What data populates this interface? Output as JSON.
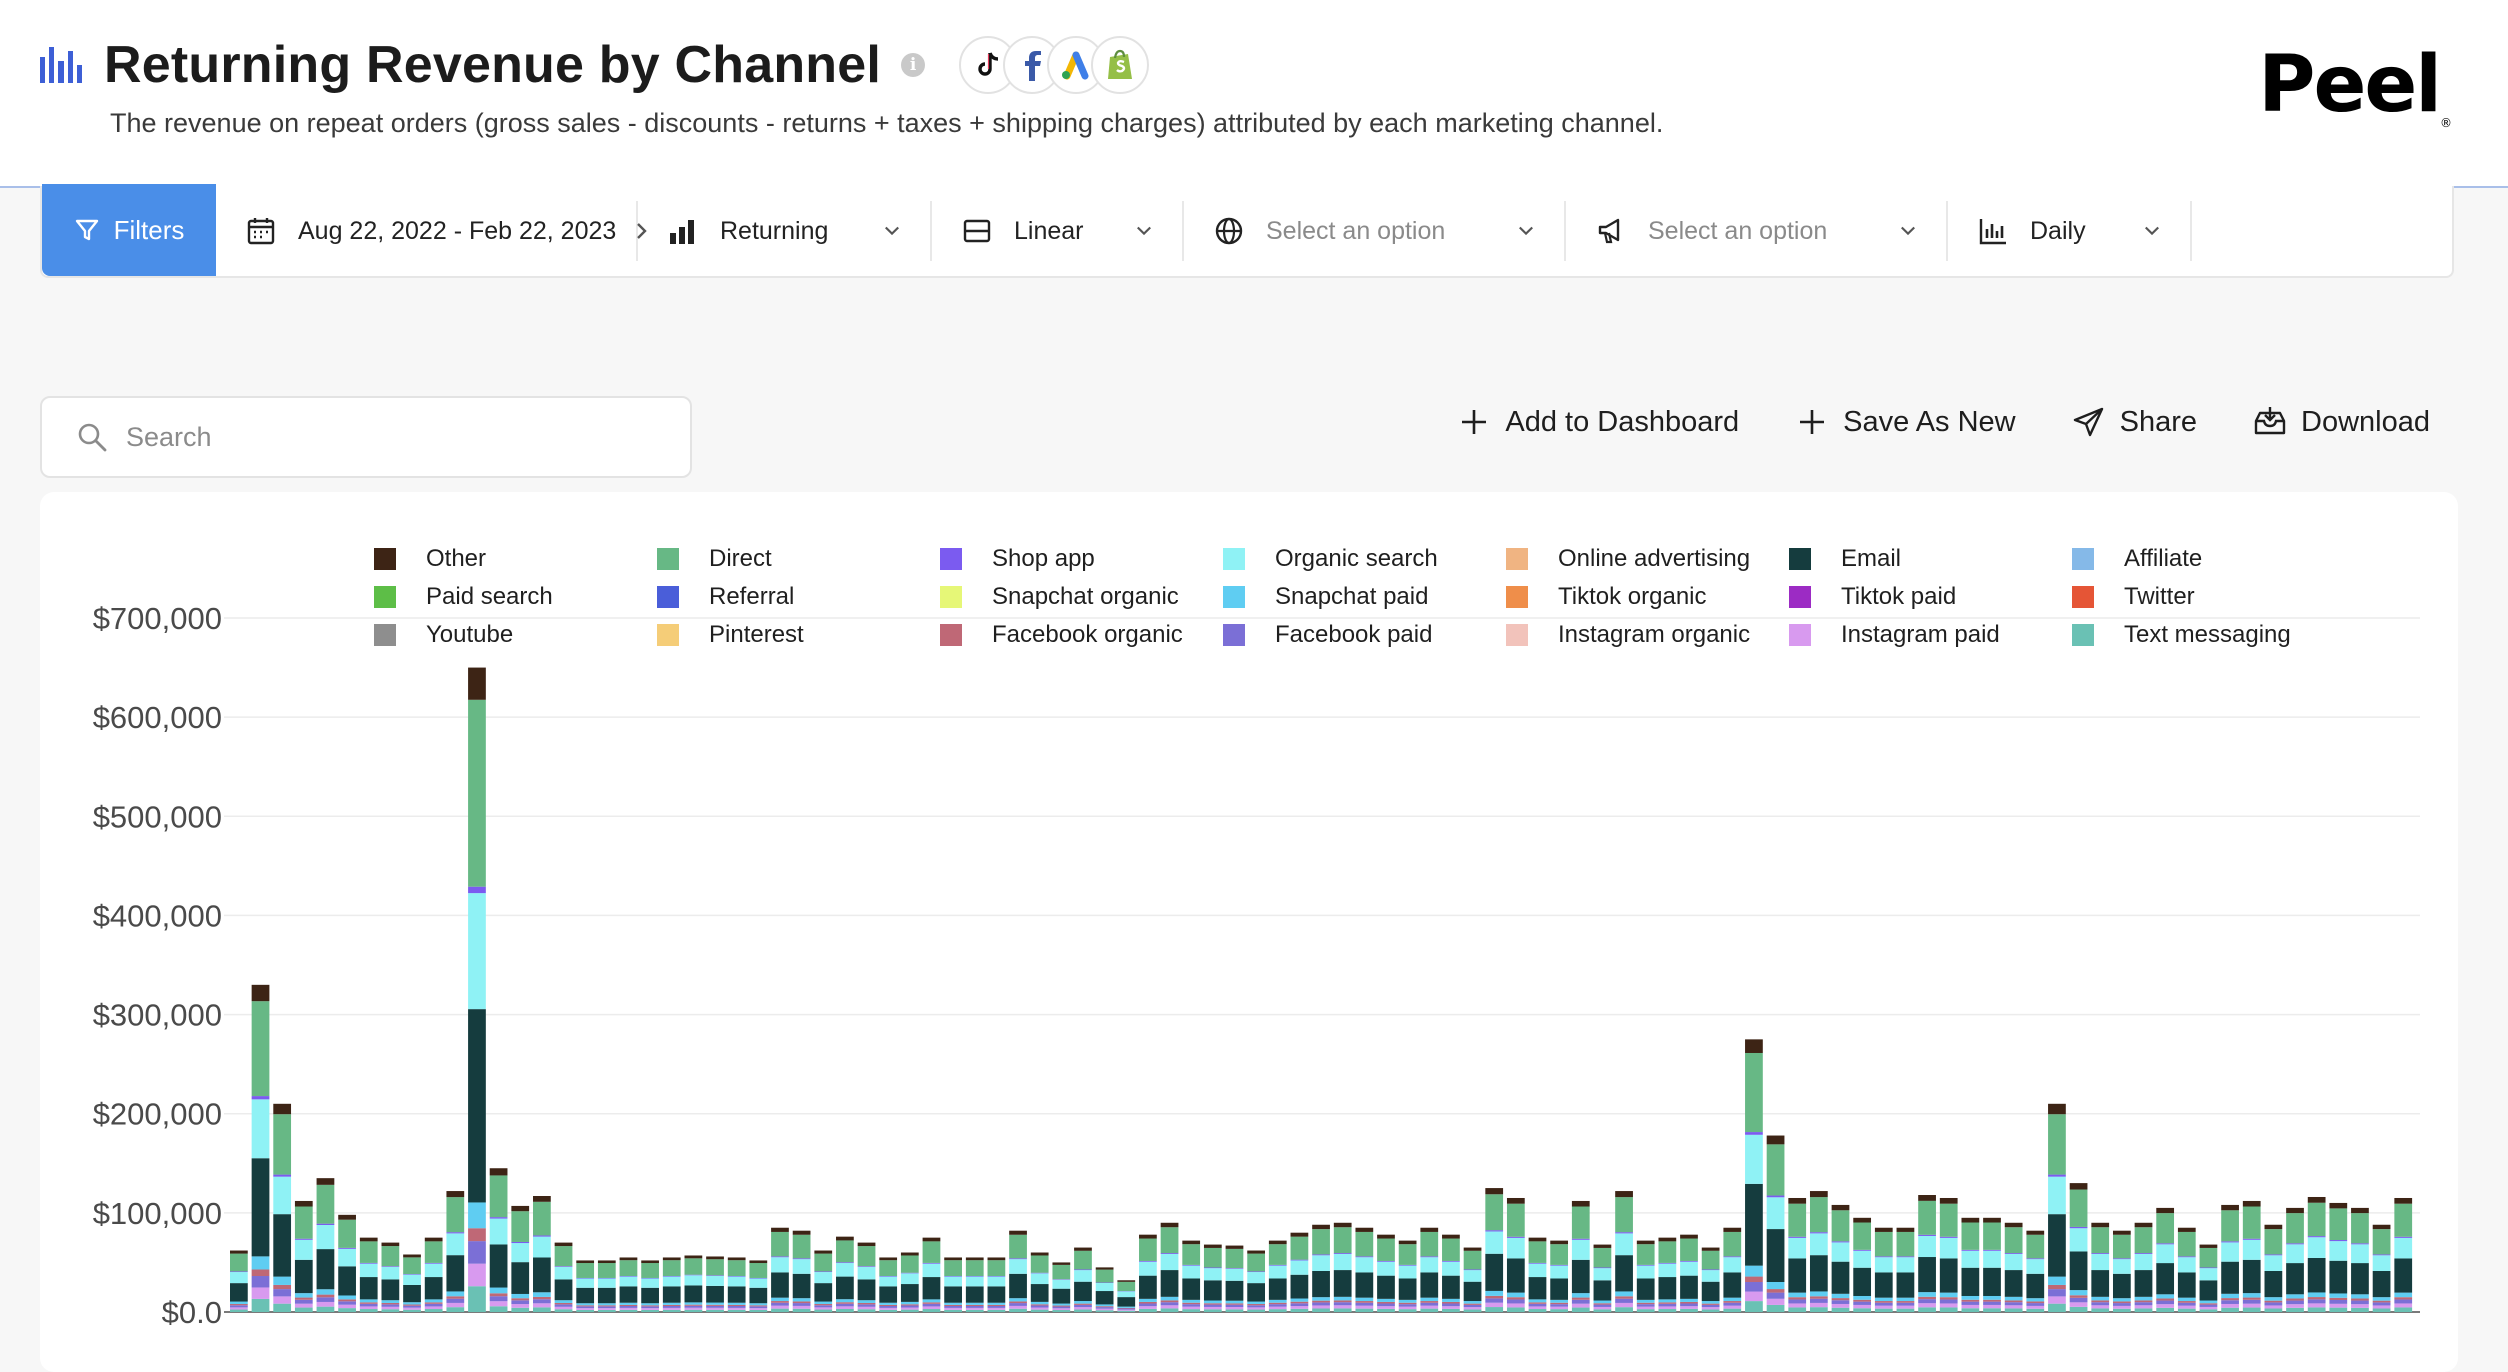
{
  "header": {
    "title": "Returning Revenue by Channel",
    "info_glyph": "i",
    "subtitle": "The revenue on repeat orders (gross sales - discounts - returns + taxes + shipping charges) attributed by each marketing channel.",
    "logo": "Peel",
    "logo_mark": "®",
    "source_icons": [
      "tiktok-icon",
      "facebook-icon",
      "google-ads-icon",
      "shopify-icon"
    ]
  },
  "filters": {
    "button_label": "Filters",
    "date_range": "Aug 22, 2022 - Feb 22, 2023",
    "customer_type": "Returning",
    "scale": "Linear",
    "select1_placeholder": "Select an option",
    "select2_placeholder": "Select an option",
    "granularity": "Daily"
  },
  "search": {
    "placeholder": "Search"
  },
  "actions": {
    "add_to_dashboard": "Add to Dashboard",
    "save_as_new": "Save As New",
    "share": "Share",
    "download": "Download"
  },
  "colors": {
    "accent": "#4a8ee8",
    "brand_icon": "#3d5fd6"
  },
  "chart_data": {
    "type": "bar",
    "stacked": true,
    "grid": true,
    "legend_position": "top",
    "yticks": [
      "$0.0",
      "$100,000",
      "$200,000",
      "$300,000",
      "$400,000",
      "$500,000",
      "$600,000",
      "$700,000"
    ],
    "ylim": [
      0,
      700000
    ],
    "legend": [
      {
        "name": "Other",
        "color": "#3d2415"
      },
      {
        "name": "Direct",
        "color": "#67b885"
      },
      {
        "name": "Shop app",
        "color": "#7b5bf0"
      },
      {
        "name": "Organic search",
        "color": "#8ff2f5"
      },
      {
        "name": "Online advertising",
        "color": "#f0b482"
      },
      {
        "name": "Email",
        "color": "#153c3e"
      },
      {
        "name": "Affiliate",
        "color": "#85b9e8"
      },
      {
        "name": "Paid search",
        "color": "#5dbe47"
      },
      {
        "name": "Referral",
        "color": "#4a5ed9"
      },
      {
        "name": "Snapchat organic",
        "color": "#e6f777"
      },
      {
        "name": "Snapchat paid",
        "color": "#5fcdf2"
      },
      {
        "name": "Tiktok organic",
        "color": "#ef8e4a"
      },
      {
        "name": "Tiktok paid",
        "color": "#9c2bc4"
      },
      {
        "name": "Twitter",
        "color": "#e55536"
      },
      {
        "name": "Youtube",
        "color": "#8e8e8e"
      },
      {
        "name": "Pinterest",
        "color": "#f5cd78"
      },
      {
        "name": "Facebook organic",
        "color": "#bf6876"
      },
      {
        "name": "Facebook paid",
        "color": "#7b6fd6"
      },
      {
        "name": "Instagram organic",
        "color": "#f2c3bb"
      },
      {
        "name": "Instagram paid",
        "color": "#d89aef"
      },
      {
        "name": "Text messaging",
        "color": "#6ac1b4"
      }
    ],
    "stack_order": [
      "Text messaging",
      "Instagram paid",
      "Facebook paid",
      "Facebook organic",
      "Snapchat paid",
      "Email",
      "Organic search",
      "Shop app",
      "Direct",
      "Other"
    ],
    "totals": [
      62000,
      330000,
      210000,
      112000,
      135000,
      98000,
      75000,
      70000,
      58000,
      75000,
      122000,
      650000,
      145000,
      107000,
      117000,
      70000,
      52000,
      52000,
      55000,
      52000,
      55000,
      57000,
      56000,
      55000,
      52000,
      85000,
      82000,
      62000,
      76000,
      70000,
      55000,
      60000,
      75000,
      55000,
      55000,
      55000,
      82000,
      60000,
      50000,
      65000,
      45000,
      32000,
      78000,
      90000,
      72000,
      68000,
      67000,
      62000,
      72000,
      80000,
      88000,
      90000,
      85000,
      78000,
      72000,
      85000,
      78000,
      65000,
      125000,
      115000,
      75000,
      72000,
      112000,
      68000,
      122000,
      72000,
      75000,
      78000,
      65000,
      85000,
      275000,
      178000,
      115000,
      122000,
      108000,
      95000,
      85000,
      85000,
      118000,
      115000,
      95000,
      95000,
      90000,
      82000,
      210000,
      130000,
      90000,
      82000,
      90000,
      105000,
      85000,
      68000,
      108000,
      112000,
      88000,
      105000,
      116000,
      110000,
      105000,
      88000,
      115000
    ]
  }
}
